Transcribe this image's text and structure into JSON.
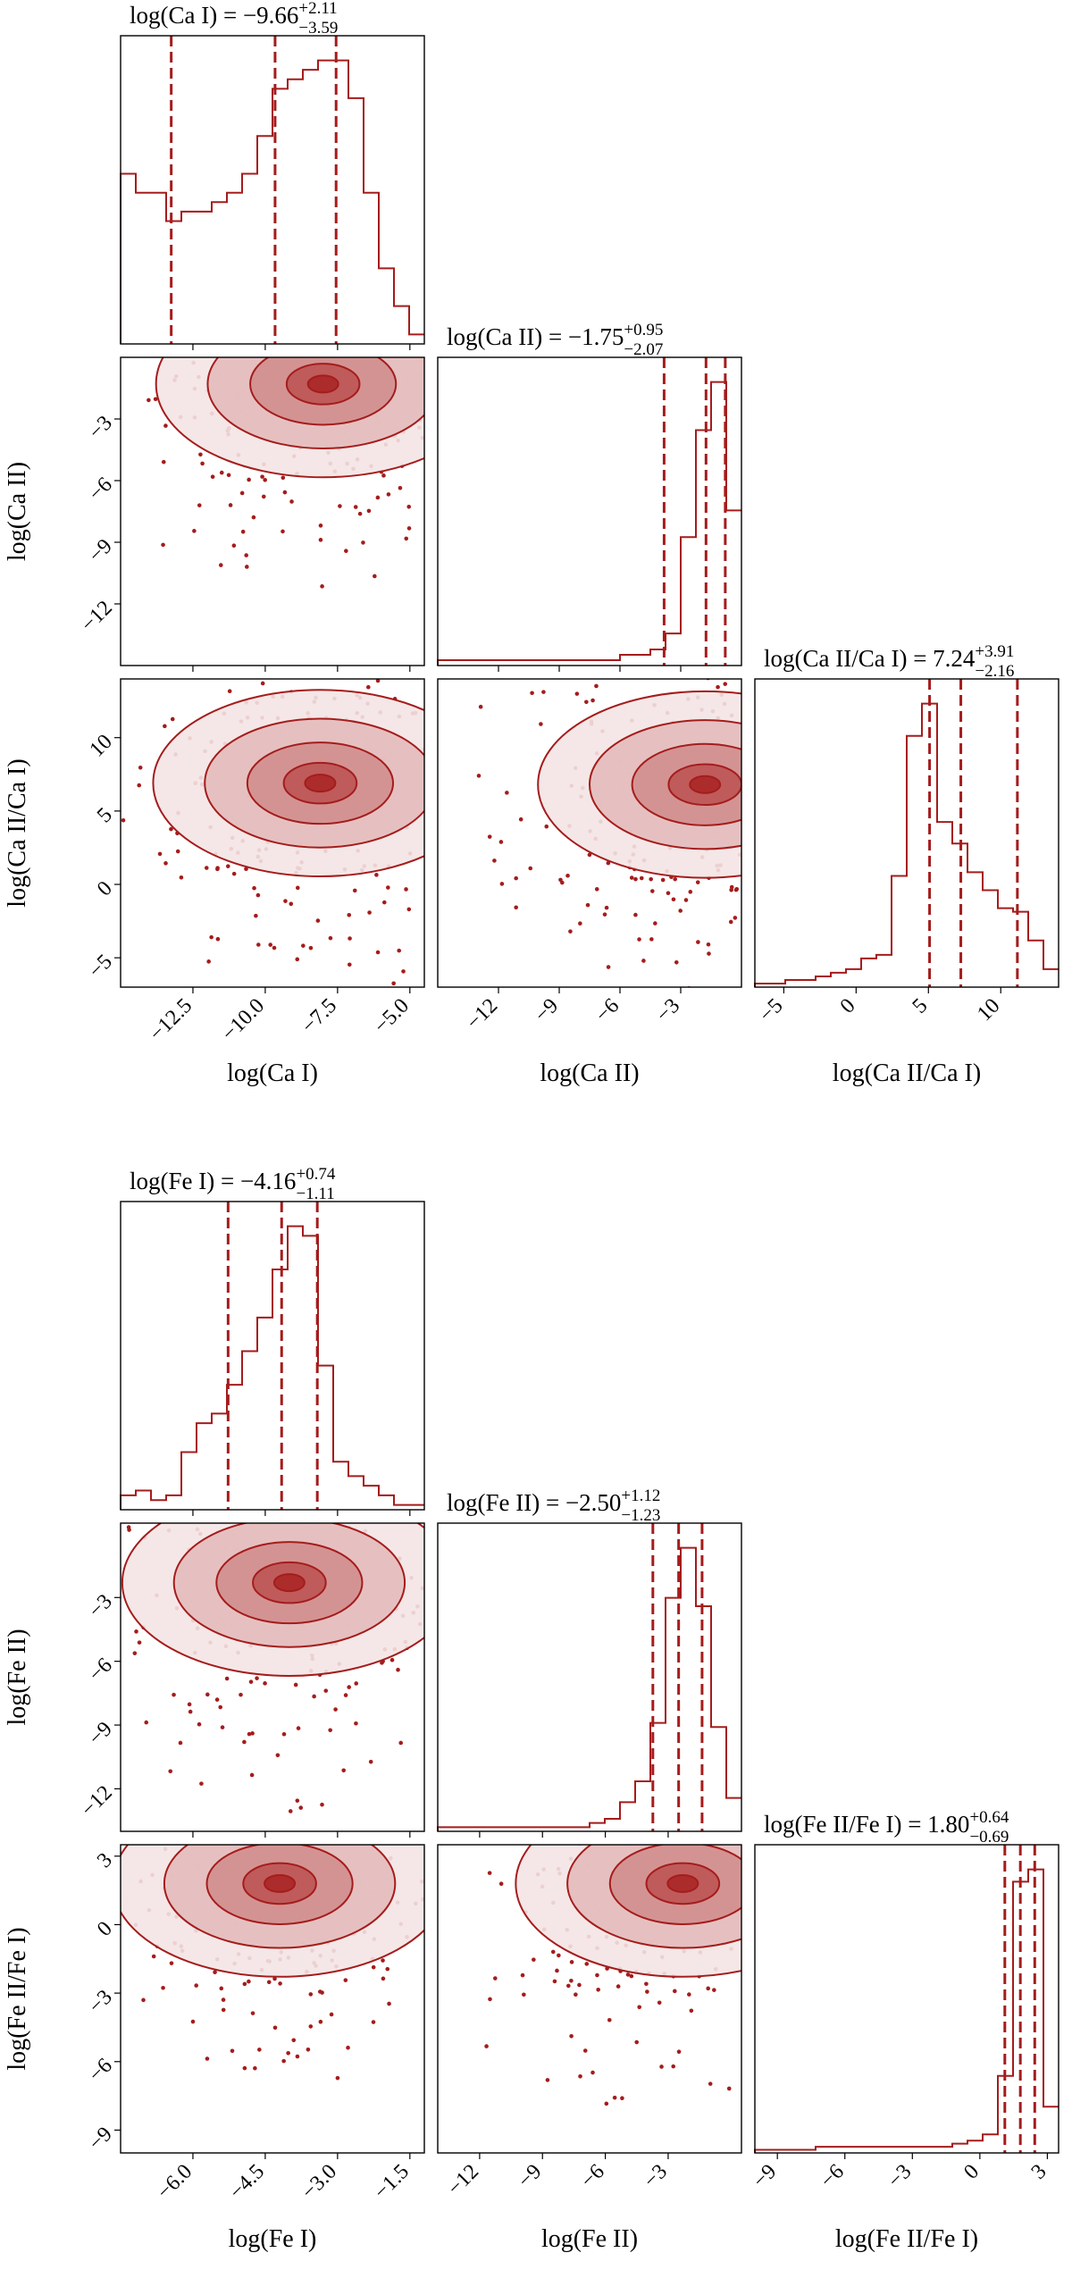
{
  "colors": {
    "accent": "#a51c1c",
    "axis": "#000000",
    "background": "#ffffff"
  },
  "chart_data": [
    {
      "type": "corner",
      "parameters": [
        "log(Ca I)",
        "log(Ca II)",
        "log(Ca II/Ca I)"
      ],
      "axis_labels": [
        "log(Ca I)",
        "log(Ca II)",
        "log(Ca II/Ca I)"
      ],
      "titles": [
        {
          "prefix": "log(Ca I) = ",
          "median": "−9.66",
          "upper": "+2.11",
          "lower": "−3.59"
        },
        {
          "prefix": "log(Ca II) = ",
          "median": "−1.75",
          "upper": "+0.95",
          "lower": "−2.07"
        },
        {
          "prefix": "log(Ca II/Ca I) = ",
          "median": "7.24",
          "upper": "+3.91",
          "lower": "−2.16"
        }
      ],
      "ranges": [
        [
          -15.0,
          -4.5
        ],
        [
          -15.0,
          0.0
        ],
        [
          -7.0,
          14.0
        ]
      ],
      "ticks": [
        [
          -12.5,
          -10.0,
          -7.5,
          -5.0
        ],
        [
          -12,
          -9,
          -6,
          -3
        ],
        [
          -5,
          0,
          5,
          10
        ]
      ],
      "tick_labels": [
        [
          "−12.5",
          "−10.0",
          "−7.5",
          "−5.0"
        ],
        [
          "−12",
          "−9",
          "−6",
          "−3"
        ],
        [
          "−5",
          "0",
          "5",
          "10"
        ]
      ],
      "quantiles": [
        [
          -13.25,
          -9.66,
          -7.55
        ],
        [
          -3.82,
          -1.75,
          -0.8
        ],
        [
          5.08,
          7.24,
          11.15
        ]
      ],
      "histograms": [
        {
          "bins": 20,
          "counts": [
            18,
            16,
            16,
            13,
            14,
            14,
            15,
            16,
            18,
            22,
            27,
            28,
            29,
            30,
            30,
            26,
            16,
            8,
            4,
            1
          ]
        },
        {
          "bins": 20,
          "counts": [
            1,
            1,
            1,
            1,
            1,
            1,
            1,
            1,
            1,
            1,
            1,
            1,
            2,
            2,
            3,
            6,
            24,
            44,
            53,
            29
          ]
        },
        {
          "bins": 20,
          "counts": [
            1,
            1,
            2,
            2,
            3,
            4,
            5,
            8,
            9,
            31,
            70,
            79,
            46,
            40,
            32,
            27,
            22,
            21,
            13,
            5
          ]
        }
      ],
      "density_peaks": [
        {
          "x": -8.0,
          "y": -1.3
        },
        {
          "x": -8.1,
          "y": 6.9
        },
        {
          "x": -1.8,
          "y": 6.8
        }
      ]
    },
    {
      "type": "corner",
      "parameters": [
        "log(Fe I)",
        "log(Fe II)",
        "log(Fe II/Fe I)"
      ],
      "axis_labels": [
        "log(Fe I)",
        "log(Fe II)",
        "log(Fe II/Fe I)"
      ],
      "titles": [
        {
          "prefix": "log(Fe I) = ",
          "median": "−4.16",
          "upper": "+0.74",
          "lower": "−1.11"
        },
        {
          "prefix": "log(Fe II) = ",
          "median": "−2.50",
          "upper": "+1.12",
          "lower": "−1.23"
        },
        {
          "prefix": "log(Fe II/Fe I) = ",
          "median": "1.80",
          "upper": "+0.64",
          "lower": "−0.69"
        }
      ],
      "ranges": [
        [
          -7.5,
          -1.2
        ],
        [
          -14.0,
          0.5
        ],
        [
          -10.0,
          3.5
        ]
      ],
      "ticks": [
        [
          -6.0,
          -4.5,
          -3.0,
          -1.5
        ],
        [
          -12,
          -9,
          -6,
          -3
        ],
        [
          -9,
          -6,
          -3,
          0,
          3
        ]
      ],
      "tick_labels": [
        [
          "−6.0",
          "−4.5",
          "−3.0",
          "−1.5"
        ],
        [
          "−12",
          "−9",
          "−6",
          "−3"
        ],
        [
          "−9",
          "−6",
          "−3",
          "0",
          "3"
        ]
      ],
      "quantiles": [
        [
          -5.27,
          -4.16,
          -3.42
        ],
        [
          -3.73,
          -2.5,
          -1.38
        ],
        [
          1.11,
          1.8,
          2.44
        ]
      ],
      "histograms": [
        {
          "bins": 20,
          "counts": [
            3,
            4,
            2,
            3,
            12,
            18,
            20,
            26,
            33,
            40,
            50,
            59,
            57,
            30,
            10,
            7,
            5,
            3,
            1,
            1
          ]
        },
        {
          "bins": 20,
          "counts": [
            1,
            1,
            1,
            1,
            1,
            1,
            1,
            1,
            1,
            1,
            2,
            3,
            7,
            12,
            26,
            56,
            68,
            54,
            25,
            8
          ]
        },
        {
          "bins": 20,
          "counts": [
            1,
            1,
            1,
            1,
            2,
            2,
            2,
            2,
            2,
            2,
            2,
            2,
            2,
            3,
            4,
            6,
            25,
            88,
            92,
            15
          ]
        }
      ],
      "density_peaks": [
        {
          "x": -4.0,
          "y": -2.3
        },
        {
          "x": -4.2,
          "y": 1.8
        },
        {
          "x": -2.3,
          "y": 1.8
        }
      ]
    }
  ]
}
